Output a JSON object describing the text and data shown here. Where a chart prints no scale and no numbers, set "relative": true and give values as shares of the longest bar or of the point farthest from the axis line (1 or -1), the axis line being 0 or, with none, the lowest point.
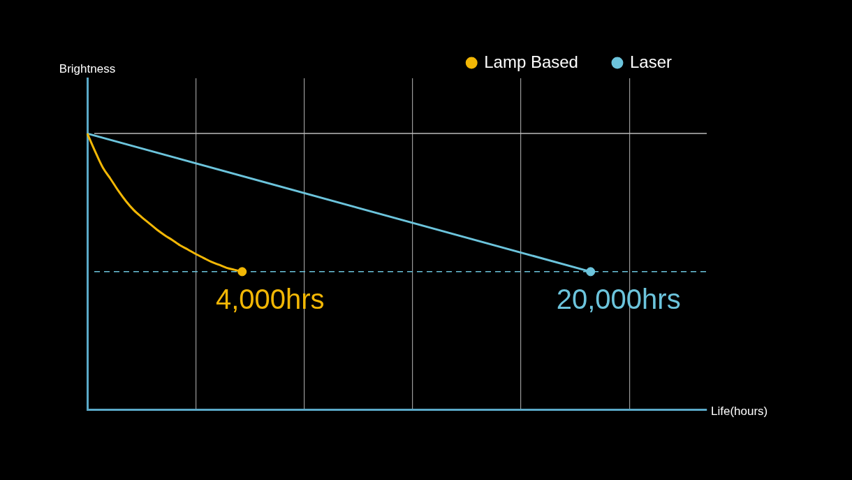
{
  "chart_data": {
    "type": "line",
    "xlabel": "Life(hours)",
    "ylabel": "Brightness",
    "relative": true,
    "categories": [
      null,
      null,
      null,
      null,
      null,
      null,
      null,
      null,
      null,
      null,
      null,
      null,
      null,
      null,
      null,
      null,
      null,
      null,
      null,
      null,
      null,
      null,
      null,
      null,
      null,
      null,
      null,
      null,
      null,
      null,
      null,
      null,
      null,
      null,
      null,
      null,
      null,
      null,
      null,
      null,
      null,
      null,
      null,
      null,
      null,
      null,
      null,
      null,
      null,
      null,
      null,
      null,
      null,
      null,
      null,
      null,
      null,
      null,
      null,
      null,
      null,
      null,
      null,
      null,
      null,
      null,
      null,
      null,
      null,
      null,
      null,
      null,
      null,
      null,
      null,
      null,
      null,
      null,
      null,
      null,
      null
    ],
    "series": [
      {
        "name": "Lamp Based",
        "color": "#f2b705",
        "values": [
          1,
          0.936,
          0.877,
          0.836,
          0.793,
          0.755,
          0.723,
          0.698,
          0.675,
          0.652,
          0.632,
          0.614,
          0.595,
          0.58,
          0.564,
          0.55,
          0.536,
          0.525,
          0.514,
          0.507,
          0.5,
          null,
          null,
          null,
          null,
          null,
          null,
          null,
          null,
          null,
          null,
          null,
          null,
          null,
          null,
          null,
          null,
          null,
          null,
          null,
          null,
          null,
          null,
          null,
          null,
          null,
          null,
          null,
          null,
          null,
          null,
          null,
          null,
          null,
          null,
          null,
          null,
          null,
          null,
          null,
          null,
          null,
          null,
          null,
          null,
          null,
          null,
          null,
          null,
          null,
          null,
          null,
          null,
          null,
          null,
          null,
          null,
          null,
          null,
          null,
          null
        ]
      },
      {
        "name": "Laser",
        "color": "#6cc4dc",
        "values": [
          1,
          null,
          null,
          null,
          null,
          null,
          null,
          null,
          null,
          null,
          null,
          null,
          null,
          null,
          null,
          null,
          null,
          null,
          null,
          null,
          null,
          null,
          null,
          null,
          null,
          null,
          null,
          null,
          null,
          null,
          null,
          null,
          null,
          null,
          null,
          null,
          null,
          null,
          null,
          null,
          null,
          null,
          null,
          null,
          null,
          null,
          null,
          null,
          null,
          null,
          null,
          null,
          null,
          null,
          null,
          null,
          null,
          null,
          null,
          null,
          null,
          null,
          null,
          null,
          null,
          0.5,
          null,
          null,
          null,
          null,
          null,
          null,
          null,
          null,
          null,
          null,
          null,
          null,
          null,
          null,
          null
        ]
      }
    ],
    "grid": "x",
    "legend": "top right",
    "line_style": "solid",
    "ref_lines": [
      {
        "axis": "y",
        "value": 0.5,
        "color": "#6cc4dc",
        "line_style": "dashed"
      },
      {
        "axis": "y",
        "value": 1,
        "color": "#bbbbbb",
        "line_style": "solid"
      }
    ],
    "annotations": [
      "4,000hrs",
      "20,000hrs"
    ]
  }
}
